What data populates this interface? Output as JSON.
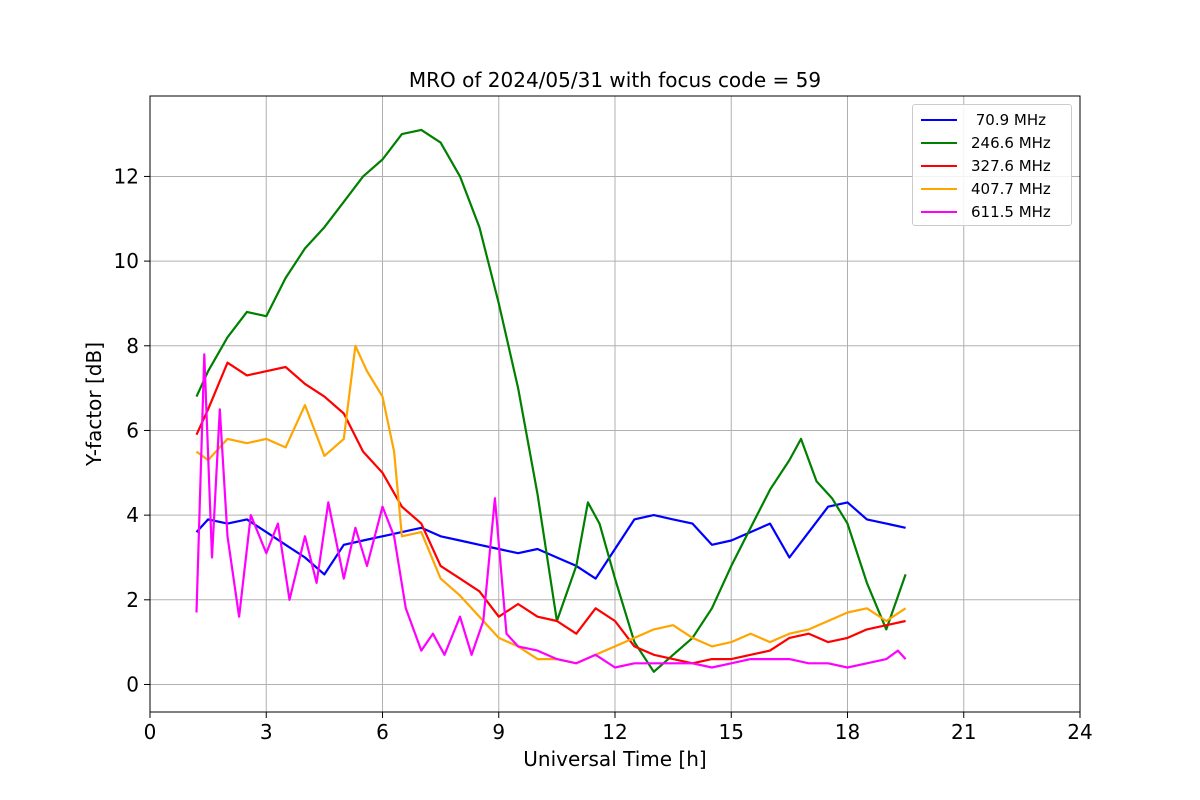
{
  "chart_data": {
    "type": "line",
    "title": "MRO of 2024/05/31 with focus code = 59",
    "xlabel": "Universal Time [h]",
    "ylabel": "Y-factor [dB]",
    "xlim": [
      0,
      24
    ],
    "ylim": [
      -0.65,
      13.9
    ],
    "xticks": [
      0,
      3,
      6,
      9,
      12,
      15,
      18,
      21,
      24
    ],
    "yticks": [
      0,
      2,
      4,
      6,
      8,
      10,
      12
    ],
    "grid": true,
    "legend_position": "top-right",
    "series": [
      {
        "name": " 70.9 MHz",
        "color": "#0000ff",
        "x": [
          1.2,
          1.5,
          2,
          2.5,
          3,
          3.5,
          4,
          4.5,
          5,
          5.5,
          6,
          6.5,
          7,
          7.5,
          8,
          8.5,
          9,
          9.5,
          10,
          10.5,
          11,
          11.5,
          12,
          12.5,
          13,
          13.5,
          14,
          14.5,
          15,
          15.5,
          16,
          16.5,
          17,
          17.5,
          18,
          18.5,
          19,
          19.5
        ],
        "y": [
          3.6,
          3.9,
          3.8,
          3.9,
          3.6,
          3.3,
          3.0,
          2.6,
          3.3,
          3.4,
          3.5,
          3.6,
          3.7,
          3.5,
          3.4,
          3.3,
          3.2,
          3.1,
          3.2,
          3.0,
          2.8,
          2.5,
          3.2,
          3.9,
          4.0,
          3.9,
          3.8,
          3.3,
          3.4,
          3.6,
          3.8,
          3.0,
          3.6,
          4.2,
          4.3,
          3.9,
          3.8,
          3.7
        ]
      },
      {
        "name": "246.6 MHz",
        "color": "#008000",
        "x": [
          1.2,
          1.5,
          2,
          2.5,
          3,
          3.5,
          4,
          4.5,
          5,
          5.5,
          6,
          6.5,
          7,
          7.5,
          8,
          8.5,
          9,
          9.5,
          10,
          10.5,
          11,
          11.3,
          11.6,
          12,
          12.5,
          13,
          13.5,
          14,
          14.5,
          15,
          15.5,
          16,
          16.5,
          16.8,
          17.2,
          17.6,
          18,
          18.5,
          19,
          19.5
        ],
        "y": [
          6.8,
          7.4,
          8.2,
          8.8,
          8.7,
          9.6,
          10.3,
          10.8,
          11.4,
          12.0,
          12.4,
          13.0,
          13.1,
          12.8,
          12.0,
          10.8,
          9.0,
          7.0,
          4.5,
          1.5,
          2.8,
          4.3,
          3.8,
          2.5,
          1.0,
          0.3,
          0.7,
          1.1,
          1.8,
          2.8,
          3.7,
          4.6,
          5.3,
          5.8,
          4.8,
          4.4,
          3.8,
          2.4,
          1.3,
          2.6
        ]
      },
      {
        "name": "327.6 MHz",
        "color": "#ff0000",
        "x": [
          1.2,
          1.5,
          2,
          2.5,
          3,
          3.5,
          4,
          4.5,
          5,
          5.5,
          6,
          6.5,
          7,
          7.5,
          8,
          8.5,
          9,
          9.5,
          10,
          10.5,
          11,
          11.5,
          12,
          12.5,
          13,
          13.5,
          14,
          14.5,
          15,
          15.5,
          16,
          16.5,
          17,
          17.5,
          18,
          18.5,
          19,
          19.5
        ],
        "y": [
          5.9,
          6.5,
          7.6,
          7.3,
          7.4,
          7.5,
          7.1,
          6.8,
          6.4,
          5.5,
          5.0,
          4.2,
          3.8,
          2.8,
          2.5,
          2.2,
          1.6,
          1.9,
          1.6,
          1.5,
          1.2,
          1.8,
          1.5,
          0.9,
          0.7,
          0.6,
          0.5,
          0.6,
          0.6,
          0.7,
          0.8,
          1.1,
          1.2,
          1.0,
          1.1,
          1.3,
          1.4,
          1.5
        ]
      },
      {
        "name": "407.7 MHz",
        "color": "#ffa500",
        "x": [
          1.2,
          1.5,
          2,
          2.5,
          3,
          3.5,
          4,
          4.5,
          5,
          5.3,
          5.6,
          6,
          6.3,
          6.5,
          7,
          7.5,
          8,
          8.5,
          9,
          9.5,
          10,
          10.5,
          11,
          11.5,
          12,
          12.5,
          13,
          13.5,
          14,
          14.5,
          15,
          15.5,
          16,
          16.5,
          17,
          17.5,
          18,
          18.5,
          19,
          19.5
        ],
        "y": [
          5.5,
          5.3,
          5.8,
          5.7,
          5.8,
          5.6,
          6.6,
          5.4,
          5.8,
          8.0,
          7.4,
          6.8,
          5.5,
          3.5,
          3.6,
          2.5,
          2.1,
          1.6,
          1.1,
          0.9,
          0.6,
          0.6,
          0.5,
          0.7,
          0.9,
          1.1,
          1.3,
          1.4,
          1.1,
          0.9,
          1.0,
          1.2,
          1.0,
          1.2,
          1.3,
          1.5,
          1.7,
          1.8,
          1.5,
          1.8
        ]
      },
      {
        "name": "611.5 MHz",
        "color": "#ff00ff",
        "x": [
          1.2,
          1.4,
          1.6,
          1.8,
          2,
          2.3,
          2.6,
          3,
          3.3,
          3.6,
          4,
          4.3,
          4.6,
          5,
          5.3,
          5.6,
          6,
          6.3,
          6.6,
          7,
          7.3,
          7.6,
          8,
          8.3,
          8.6,
          8.9,
          9.2,
          9.5,
          10,
          10.5,
          11,
          11.5,
          12,
          12.5,
          13,
          13.5,
          14,
          14.5,
          15,
          15.5,
          16,
          16.5,
          17,
          17.5,
          18,
          18.5,
          19,
          19.3,
          19.5
        ],
        "y": [
          1.7,
          7.8,
          3.0,
          6.5,
          3.5,
          1.6,
          4.0,
          3.1,
          3.8,
          2.0,
          3.5,
          2.4,
          4.3,
          2.5,
          3.7,
          2.8,
          4.2,
          3.5,
          1.8,
          0.8,
          1.2,
          0.7,
          1.6,
          0.7,
          1.5,
          4.4,
          1.2,
          0.9,
          0.8,
          0.6,
          0.5,
          0.7,
          0.4,
          0.5,
          0.5,
          0.5,
          0.5,
          0.4,
          0.5,
          0.6,
          0.6,
          0.6,
          0.5,
          0.5,
          0.4,
          0.5,
          0.6,
          0.8,
          0.6
        ]
      }
    ]
  }
}
